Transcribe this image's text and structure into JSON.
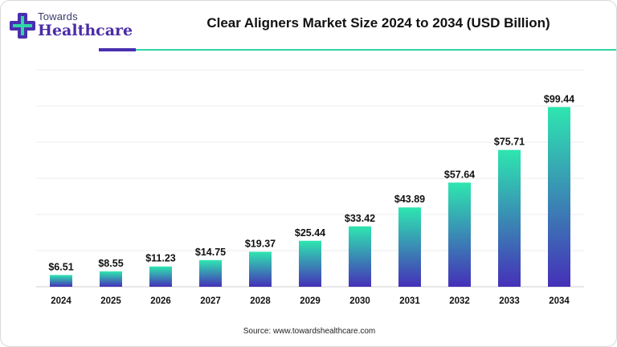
{
  "brand": {
    "line1": "Towards",
    "line2": "Healthcare",
    "colors": {
      "purple": "#4a2fb0",
      "teal": "#2fd6a6"
    }
  },
  "source": "Source: www.towardshealthcare.com",
  "chart_data": {
    "type": "bar",
    "title": "Clear Aligners Market Size 2024 to 2034 (USD Billion)",
    "xlabel": "",
    "ylabel": "",
    "categories": [
      "2024",
      "2025",
      "2026",
      "2027",
      "2028",
      "2029",
      "2030",
      "2031",
      "2032",
      "2033",
      "2034"
    ],
    "values": [
      6.51,
      8.55,
      11.23,
      14.75,
      19.37,
      25.44,
      33.42,
      43.89,
      57.64,
      75.71,
      99.44
    ],
    "labels": [
      "$6.51",
      "$8.55",
      "$11.23",
      "$14.75",
      "$19.37",
      "$25.44",
      "$33.42",
      "$43.89",
      "$57.64",
      "$75.71",
      "$99.44"
    ],
    "ylim": [
      0,
      120
    ],
    "grid": true,
    "legend": "none",
    "bar_gradient": [
      "#2ee6b0",
      "#4530b8"
    ]
  }
}
